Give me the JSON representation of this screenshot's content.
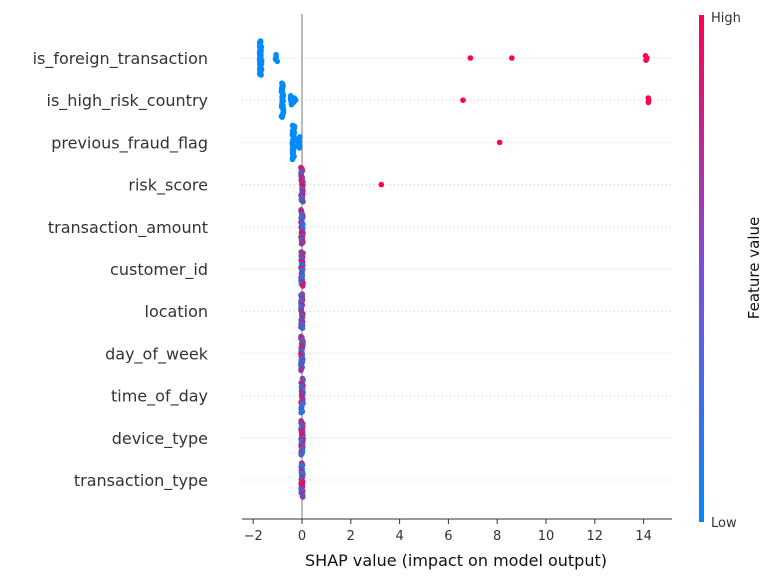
{
  "chart_data": {
    "type": "scatter",
    "subtype": "shap-beeswarm",
    "xlabel": "SHAP value (impact on model output)",
    "xlim": [
      -2.5,
      15
    ],
    "xticks": [
      -2,
      0,
      2,
      4,
      6,
      8,
      10,
      12,
      14
    ],
    "xtick_labels": [
      "−2",
      "0",
      "2",
      "4",
      "6",
      "8",
      "10",
      "12",
      "14"
    ],
    "colorbar": {
      "title": "Feature value",
      "high_label": "High",
      "low_label": "Low",
      "low_color": "#008bfb",
      "high_color": "#ff0052"
    },
    "zero_line": 0,
    "grid": "dotted-horizontal",
    "features": [
      {
        "name": "is_foreign_transaction",
        "points": [
          {
            "x": -1.7,
            "v": 0,
            "n": 40
          },
          {
            "x": -1.05,
            "v": 0,
            "n": 4
          },
          {
            "x": 6.9,
            "v": 1,
            "n": 1
          },
          {
            "x": 8.6,
            "v": 1,
            "n": 1
          },
          {
            "x": 14.1,
            "v": 1,
            "n": 3
          }
        ]
      },
      {
        "name": "is_high_risk_country",
        "points": [
          {
            "x": -0.8,
            "v": 0,
            "n": 36
          },
          {
            "x": -0.45,
            "v": 0,
            "n": 5
          },
          {
            "x": -0.3,
            "v": 0,
            "n": 3
          },
          {
            "x": 6.6,
            "v": 1,
            "n": 1
          },
          {
            "x": 14.2,
            "v": 1,
            "n": 3
          }
        ]
      },
      {
        "name": "previous_fraud_flag",
        "points": [
          {
            "x": -0.35,
            "v": 0,
            "n": 38
          },
          {
            "x": -0.1,
            "v": 0,
            "n": 6
          },
          {
            "x": 8.1,
            "v": 1,
            "n": 1
          }
        ]
      },
      {
        "name": "risk_score",
        "points": [
          {
            "x": 0,
            "v": "mixed",
            "n": 34
          },
          {
            "x": 3.25,
            "v": 1,
            "n": 1
          }
        ]
      },
      {
        "name": "transaction_amount",
        "points": [
          {
            "x": 0,
            "v": "mixed",
            "n": 34
          }
        ]
      },
      {
        "name": "customer_id",
        "points": [
          {
            "x": 0,
            "v": "mixed",
            "n": 34
          }
        ]
      },
      {
        "name": "location",
        "points": [
          {
            "x": 0,
            "v": "mixed",
            "n": 34
          }
        ]
      },
      {
        "name": "day_of_week",
        "points": [
          {
            "x": 0,
            "v": "mixed",
            "n": 34
          }
        ]
      },
      {
        "name": "time_of_day",
        "points": [
          {
            "x": 0,
            "v": "mixed",
            "n": 34
          }
        ]
      },
      {
        "name": "device_type",
        "points": [
          {
            "x": 0,
            "v": "mixed",
            "n": 34
          }
        ]
      },
      {
        "name": "transaction_type",
        "points": [
          {
            "x": 0,
            "v": "mixed",
            "n": 34
          }
        ]
      }
    ]
  }
}
